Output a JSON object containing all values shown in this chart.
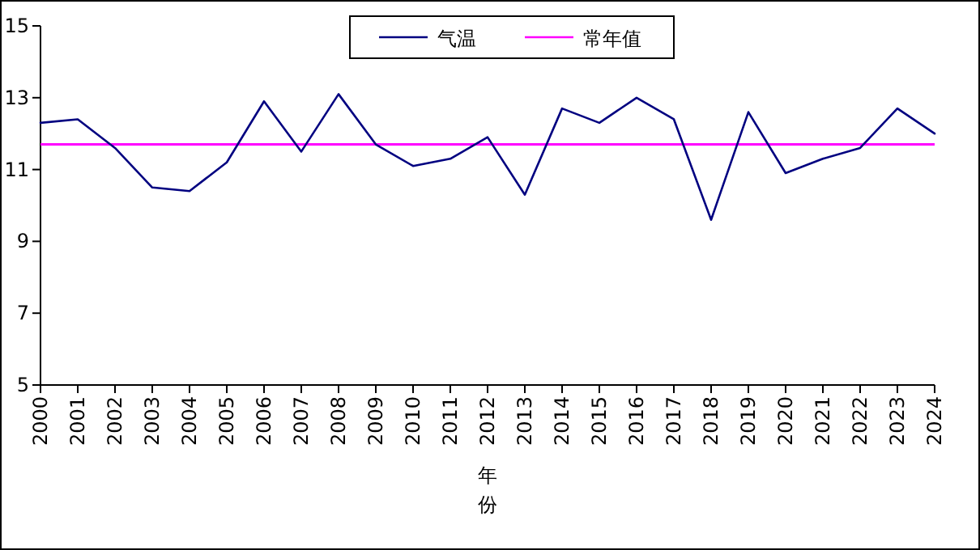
{
  "chart_data": {
    "type": "line",
    "xlabel": "年份",
    "categories": [
      "2000",
      "2001",
      "2002",
      "2003",
      "2004",
      "2005",
      "2006",
      "2007",
      "2008",
      "2009",
      "2010",
      "2011",
      "2012",
      "2013",
      "2014",
      "2015",
      "2016",
      "2017",
      "2018",
      "2019",
      "2020",
      "2021",
      "2022",
      "2023",
      "2024"
    ],
    "series": [
      {
        "name": "气温",
        "color": "#000080",
        "values": [
          12.3,
          12.4,
          11.6,
          10.5,
          10.4,
          11.2,
          12.9,
          11.5,
          13.1,
          11.7,
          11.1,
          11.3,
          11.9,
          10.3,
          12.7,
          12.3,
          13.0,
          12.4,
          9.6,
          12.6,
          10.9,
          11.3,
          11.6,
          12.7,
          12.0
        ]
      }
    ],
    "ref_lines": [
      {
        "axis": "y",
        "value": 11.7,
        "label": "常年值",
        "color": "#ff00ff"
      }
    ],
    "ylim": [
      5,
      15
    ],
    "yticks": [
      5,
      7,
      9,
      11,
      13,
      15
    ],
    "grid": false,
    "legend": "top",
    "marker": "none",
    "line_style": "solid"
  }
}
